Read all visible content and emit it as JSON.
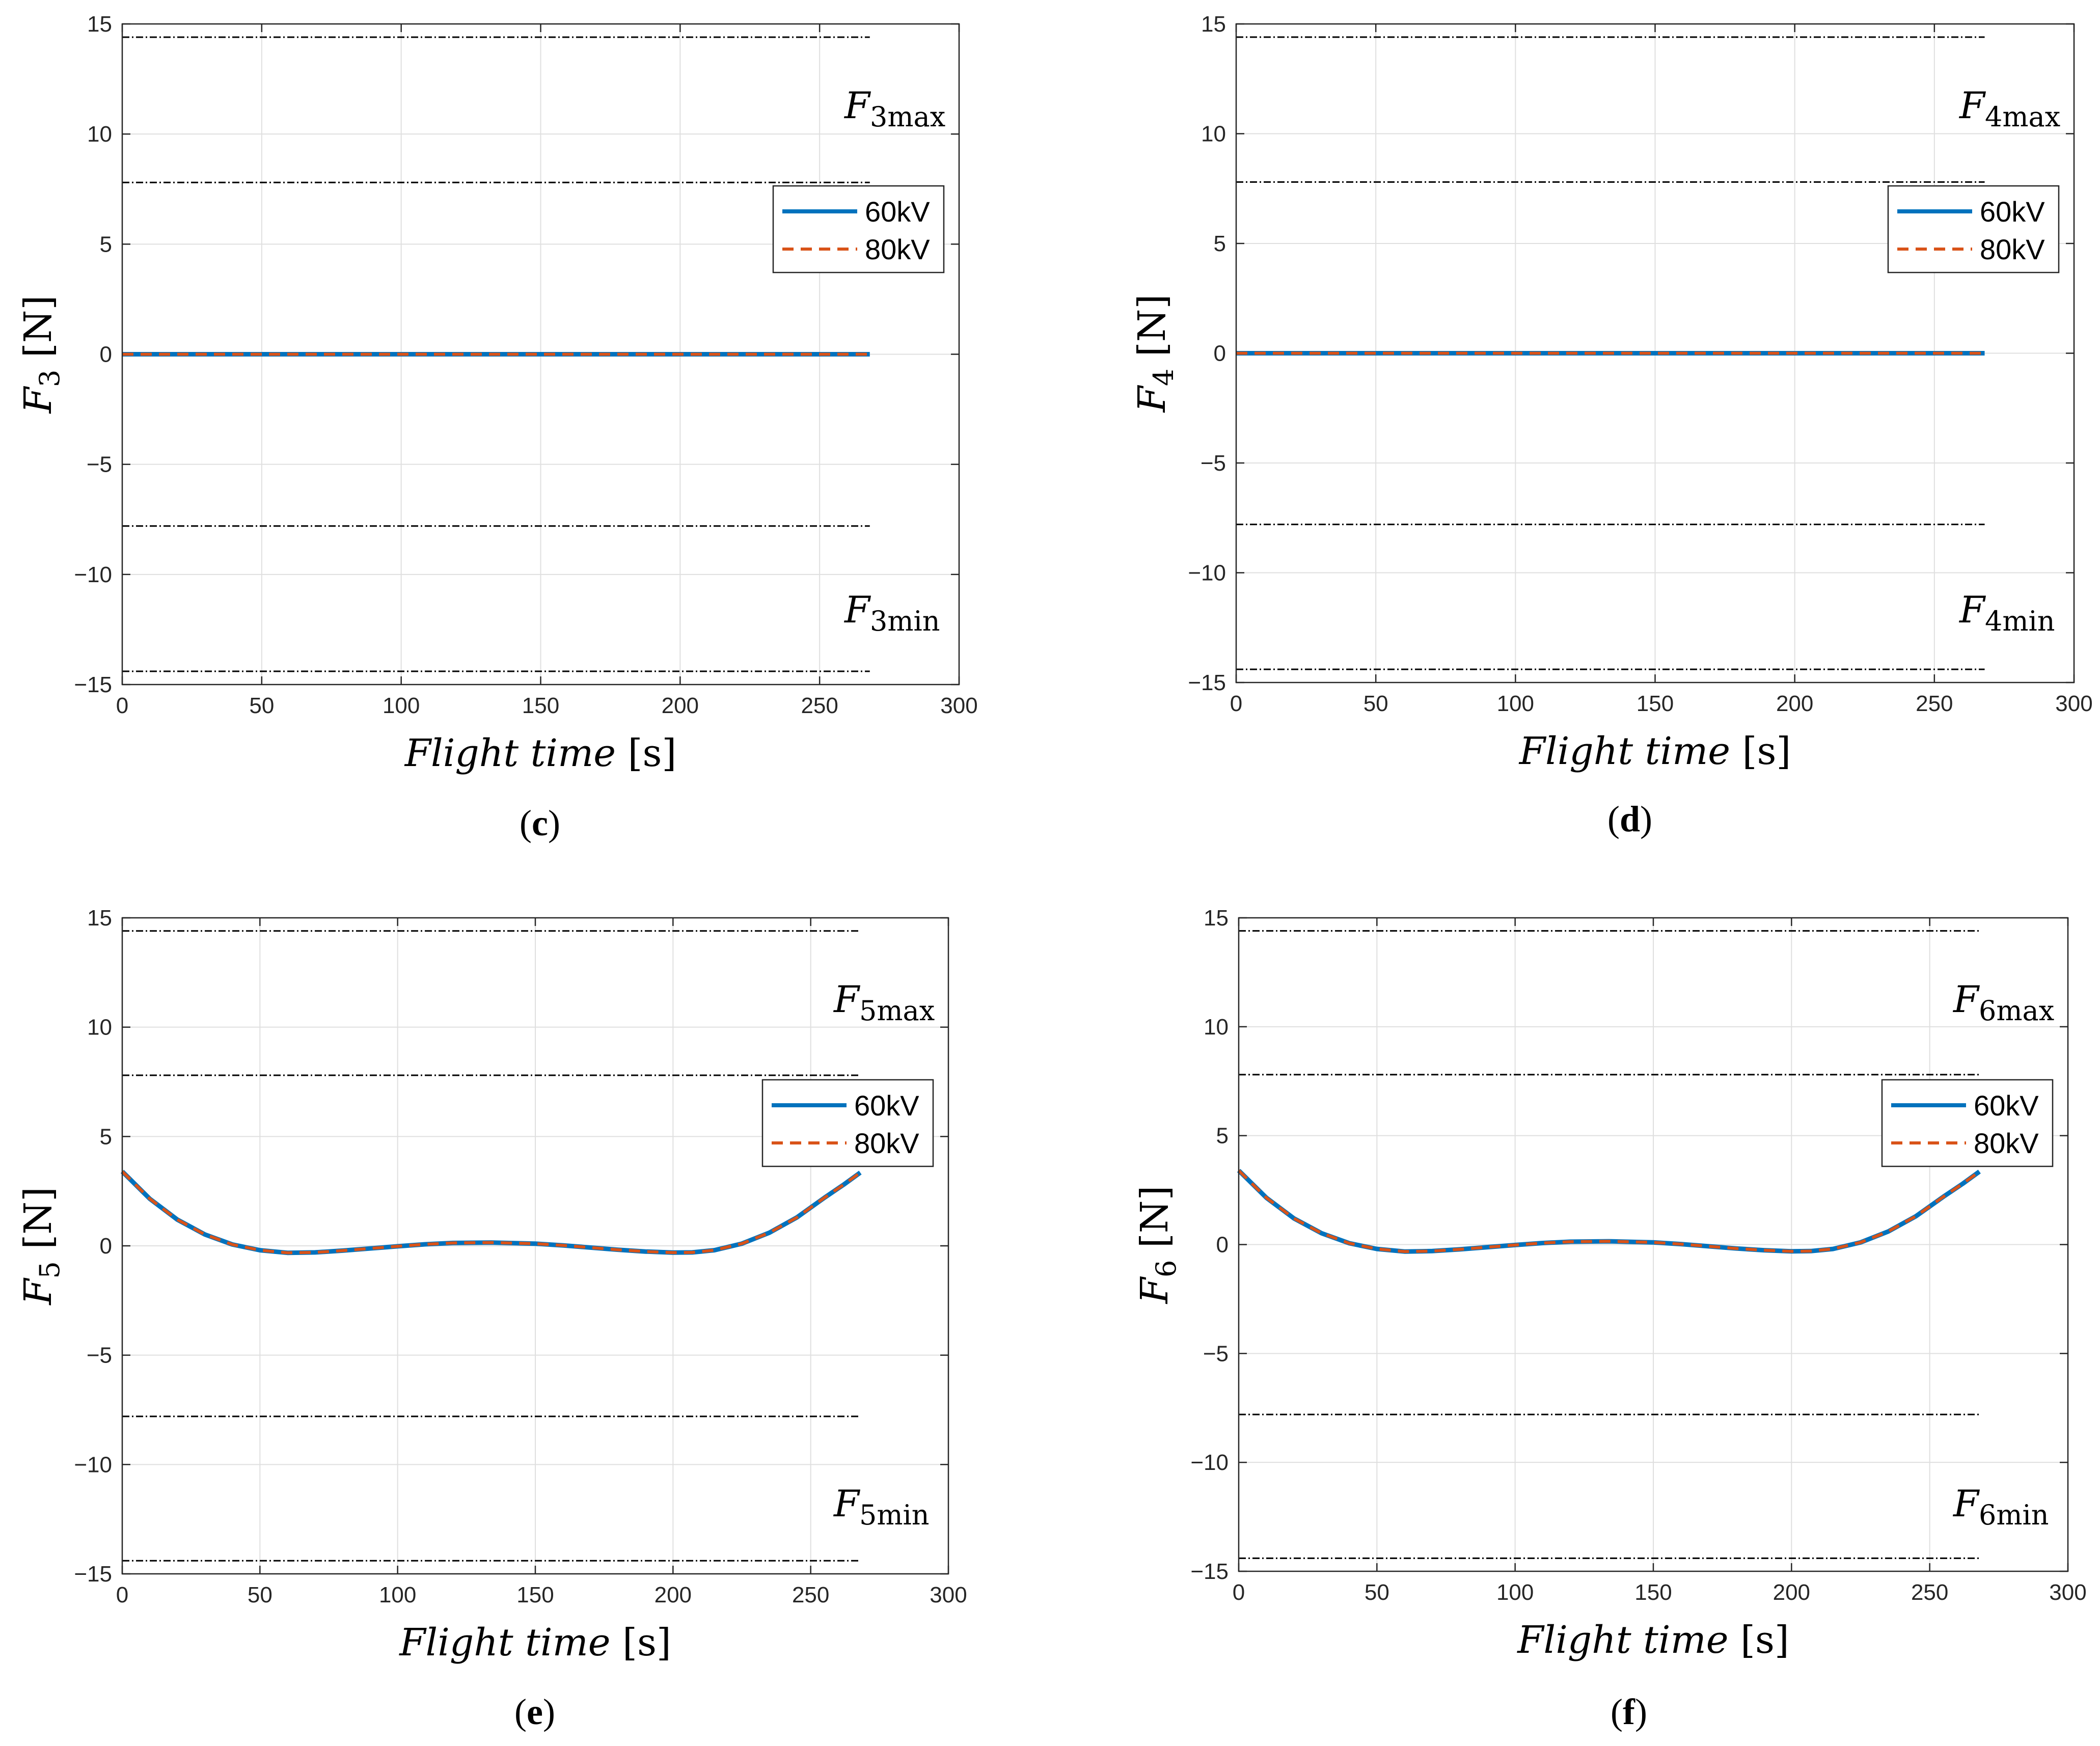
{
  "chart_data": [
    {
      "type": "line",
      "panel_label": "c",
      "index": "3",
      "xlabel": "Flight time",
      "xunit": "[s]",
      "ylabel": "F",
      "yunit": "[N]",
      "xlim": [
        0,
        300
      ],
      "ylim": [
        -15,
        15
      ],
      "xticks": [
        "0",
        "50",
        "100",
        "150",
        "200",
        "250",
        "300"
      ],
      "yticks": [
        "15",
        "10",
        "5",
        "0",
        "−5",
        "−10",
        "−15"
      ],
      "grid": true,
      "legend_position": "top-right",
      "bound_max_label": "3max",
      "bound_min_label": "3min",
      "bounds": [
        14.4,
        7.8,
        -7.8,
        -14.4
      ],
      "bound_x_end": 268,
      "series": [
        {
          "name": "60kV",
          "color": "#0072BD",
          "style": "solid",
          "x": [
            0,
            268
          ],
          "y": [
            0,
            0
          ]
        },
        {
          "name": "80kV",
          "color": "#D95319",
          "style": "dashed",
          "x": [
            0,
            268
          ],
          "y": [
            0,
            0
          ]
        }
      ]
    },
    {
      "type": "line",
      "panel_label": "d",
      "index": "4",
      "xlabel": "Flight time",
      "xunit": "[s]",
      "ylabel": "F",
      "yunit": "[N]",
      "xlim": [
        0,
        300
      ],
      "ylim": [
        -15,
        15
      ],
      "xticks": [
        "0",
        "50",
        "100",
        "150",
        "200",
        "250",
        "300"
      ],
      "yticks": [
        "15",
        "10",
        "5",
        "0",
        "−5",
        "−10",
        "−15"
      ],
      "grid": true,
      "legend_position": "top-right",
      "bound_max_label": "4max",
      "bound_min_label": "4min",
      "bounds": [
        14.4,
        7.8,
        -7.8,
        -14.4
      ],
      "bound_x_end": 268,
      "series": [
        {
          "name": "60kV",
          "color": "#0072BD",
          "style": "solid",
          "x": [
            0,
            268
          ],
          "y": [
            0,
            0
          ]
        },
        {
          "name": "80kV",
          "color": "#D95319",
          "style": "dashed",
          "x": [
            0,
            268
          ],
          "y": [
            0,
            0
          ]
        }
      ]
    },
    {
      "type": "line",
      "panel_label": "e",
      "index": "5",
      "xlabel": "Flight time",
      "xunit": "[s]",
      "ylabel": "F",
      "yunit": "[N]",
      "xlim": [
        0,
        300
      ],
      "ylim": [
        -15,
        15
      ],
      "xticks": [
        "0",
        "50",
        "100",
        "150",
        "200",
        "250",
        "300"
      ],
      "yticks": [
        "15",
        "10",
        "5",
        "0",
        "−5",
        "−10",
        "−15"
      ],
      "grid": true,
      "legend_position": "top-right",
      "bound_max_label": "5max",
      "bound_min_label": "5min",
      "bounds": [
        14.4,
        7.8,
        -7.8,
        -14.4
      ],
      "bound_x_end": 268,
      "series": [
        {
          "name": "60kV",
          "color": "#0072BD",
          "style": "solid",
          "x": [
            0,
            10,
            20,
            30,
            40,
            50,
            60,
            70,
            80,
            90,
            100,
            110,
            120,
            134,
            150,
            160,
            170,
            180,
            190,
            200,
            207,
            215,
            225,
            235,
            245,
            255,
            262,
            268
          ],
          "y": [
            3.4,
            2.15,
            1.2,
            0.52,
            0.06,
            -0.2,
            -0.32,
            -0.3,
            -0.22,
            -0.12,
            -0.02,
            0.07,
            0.13,
            0.15,
            0.1,
            0.02,
            -0.08,
            -0.18,
            -0.26,
            -0.31,
            -0.3,
            -0.2,
            0.1,
            0.6,
            1.3,
            2.2,
            2.8,
            3.35
          ]
        },
        {
          "name": "80kV",
          "color": "#D95319",
          "style": "dashed",
          "x": [
            0,
            10,
            20,
            30,
            40,
            50,
            60,
            70,
            80,
            90,
            100,
            110,
            120,
            134,
            150,
            160,
            170,
            180,
            190,
            200,
            207,
            215,
            225,
            235,
            245,
            255,
            262,
            268
          ],
          "y": [
            3.4,
            2.15,
            1.2,
            0.52,
            0.06,
            -0.2,
            -0.32,
            -0.3,
            -0.22,
            -0.12,
            -0.02,
            0.07,
            0.13,
            0.15,
            0.1,
            0.02,
            -0.08,
            -0.18,
            -0.26,
            -0.31,
            -0.3,
            -0.2,
            0.1,
            0.6,
            1.3,
            2.2,
            2.8,
            3.35
          ]
        }
      ]
    },
    {
      "type": "line",
      "panel_label": "f",
      "index": "6",
      "xlabel": "Flight time",
      "xunit": "[s]",
      "ylabel": "F",
      "yunit": "[N]",
      "xlim": [
        0,
        300
      ],
      "ylim": [
        -15,
        15
      ],
      "xticks": [
        "0",
        "50",
        "100",
        "150",
        "200",
        "250",
        "300"
      ],
      "yticks": [
        "15",
        "10",
        "5",
        "0",
        "−5",
        "−10",
        "−15"
      ],
      "grid": true,
      "legend_position": "top-right",
      "bound_max_label": "6max",
      "bound_min_label": "6min",
      "bounds": [
        14.4,
        7.8,
        -7.8,
        -14.4
      ],
      "bound_x_end": 268,
      "series": [
        {
          "name": "60kV",
          "color": "#0072BD",
          "style": "solid",
          "x": [
            0,
            10,
            20,
            30,
            40,
            50,
            60,
            70,
            80,
            90,
            100,
            110,
            120,
            134,
            150,
            160,
            170,
            180,
            190,
            200,
            207,
            215,
            225,
            235,
            245,
            255,
            262,
            268
          ],
          "y": [
            3.4,
            2.15,
            1.2,
            0.52,
            0.06,
            -0.2,
            -0.32,
            -0.3,
            -0.22,
            -0.12,
            -0.02,
            0.07,
            0.13,
            0.15,
            0.1,
            0.02,
            -0.08,
            -0.18,
            -0.26,
            -0.31,
            -0.3,
            -0.2,
            0.1,
            0.6,
            1.3,
            2.2,
            2.8,
            3.35
          ]
        },
        {
          "name": "80kV",
          "color": "#D95319",
          "style": "dashed",
          "x": [
            0,
            10,
            20,
            30,
            40,
            50,
            60,
            70,
            80,
            90,
            100,
            110,
            120,
            134,
            150,
            160,
            170,
            180,
            190,
            200,
            207,
            215,
            225,
            235,
            245,
            255,
            262,
            268
          ],
          "y": [
            3.4,
            2.15,
            1.2,
            0.52,
            0.06,
            -0.2,
            -0.32,
            -0.3,
            -0.22,
            -0.12,
            -0.02,
            0.07,
            0.13,
            0.15,
            0.1,
            0.02,
            -0.08,
            -0.18,
            -0.26,
            -0.31,
            -0.3,
            -0.2,
            0.1,
            0.6,
            1.3,
            2.2,
            2.8,
            3.35
          ]
        }
      ]
    }
  ]
}
